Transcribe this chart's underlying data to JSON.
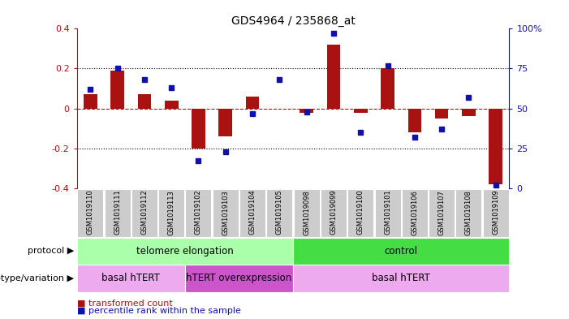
{
  "title": "GDS4964 / 235868_at",
  "samples": [
    "GSM1019110",
    "GSM1019111",
    "GSM1019112",
    "GSM1019113",
    "GSM1019102",
    "GSM1019103",
    "GSM1019104",
    "GSM1019105",
    "GSM1019098",
    "GSM1019099",
    "GSM1019100",
    "GSM1019101",
    "GSM1019106",
    "GSM1019107",
    "GSM1019108",
    "GSM1019109"
  ],
  "transformed_count": [
    0.07,
    0.19,
    0.07,
    0.04,
    -0.2,
    -0.14,
    0.06,
    0.0,
    -0.02,
    0.32,
    -0.02,
    0.2,
    -0.12,
    -0.05,
    -0.04,
    -0.38
  ],
  "percentile_rank": [
    62,
    75,
    68,
    63,
    17,
    23,
    47,
    68,
    48,
    97,
    35,
    77,
    32,
    37,
    57,
    2
  ],
  "bar_color": "#aa1111",
  "dot_color": "#1111aa",
  "ylim": [
    -0.4,
    0.4
  ],
  "y2lim": [
    0,
    100
  ],
  "yticks": [
    -0.4,
    -0.2,
    0.0,
    0.2,
    0.4
  ],
  "y2ticks": [
    0,
    25,
    50,
    75,
    100
  ],
  "y2tick_labels": [
    "0",
    "25",
    "50",
    "75",
    "100%"
  ],
  "dotted_lines": [
    0.2,
    -0.2
  ],
  "protocol_groups": [
    {
      "label": "telomere elongation",
      "start": 0,
      "end": 8,
      "color": "#aaffaa"
    },
    {
      "label": "control",
      "start": 8,
      "end": 16,
      "color": "#44dd44"
    }
  ],
  "genotype_groups": [
    {
      "label": "basal hTERT",
      "start": 0,
      "end": 4,
      "color": "#eeaaee"
    },
    {
      "label": "hTERT overexpression",
      "start": 4,
      "end": 8,
      "color": "#cc55cc"
    },
    {
      "label": "basal hTERT",
      "start": 8,
      "end": 16,
      "color": "#eeaaee"
    }
  ],
  "legend_items": [
    {
      "label": "transformed count",
      "color": "#aa1111"
    },
    {
      "label": "percentile rank within the sample",
      "color": "#1111aa"
    }
  ],
  "protocol_label": "protocol",
  "genotype_label": "genotype/variation",
  "bg_color": "#ffffff",
  "sample_bg": "#cccccc"
}
